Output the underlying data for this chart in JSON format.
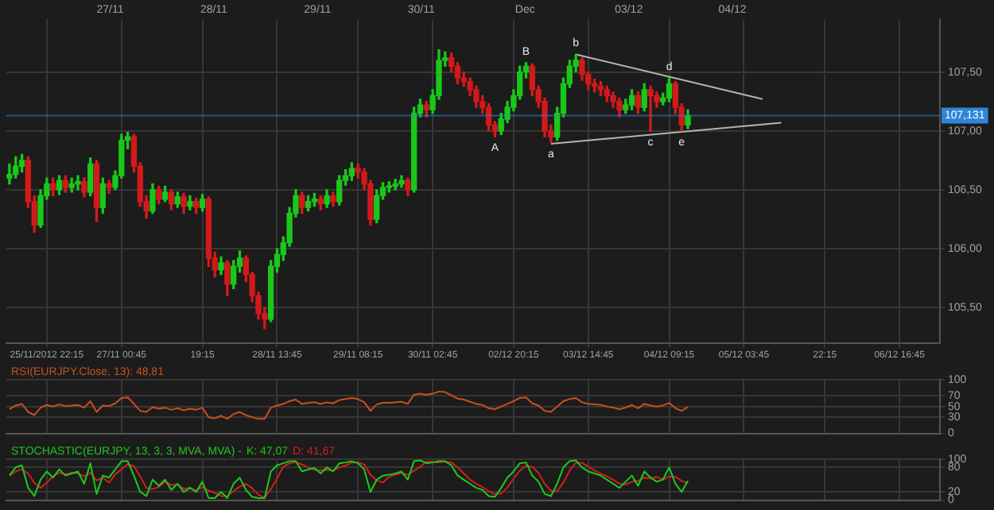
{
  "chart_data": [
    {
      "type": "candlestick",
      "ylim": [
        105.2,
        107.95
      ],
      "grid": true,
      "categories": [
        null,
        null,
        null,
        null,
        null,
        null,
        "25/11/2012 22:15",
        null,
        null,
        null,
        null,
        null,
        null,
        null,
        null,
        null,
        null,
        null,
        "27/11 00:45",
        null,
        null,
        null,
        null,
        null,
        null,
        null,
        null,
        null,
        null,
        null,
        null,
        "19:15",
        null,
        null,
        null,
        null,
        null,
        null,
        null,
        null,
        null,
        null,
        null,
        "28/11 13:45",
        null,
        null,
        null,
        null,
        null,
        null,
        null,
        null,
        null,
        null,
        null,
        null,
        "29/11 08:15",
        null,
        null,
        null,
        null,
        null,
        null,
        null,
        null,
        null,
        null,
        null,
        "30/11 02:45",
        null,
        null,
        null,
        null,
        null,
        null,
        null,
        null,
        null,
        null,
        null,
        null,
        "02/12 20:15",
        null,
        null,
        null,
        null,
        null,
        null,
        null,
        null,
        null,
        null,
        null,
        "03/12 14:45",
        null,
        null,
        null,
        null,
        null,
        null,
        null,
        null,
        null,
        null,
        null,
        null,
        "04/12 09:15",
        null,
        null,
        null,
        null,
        null,
        null,
        null,
        null,
        null,
        null,
        null,
        "05/12 03:45",
        null,
        null,
        null,
        null,
        null,
        null,
        null,
        null,
        null,
        null,
        null,
        null,
        "22:15",
        null,
        null,
        null,
        null,
        null,
        null,
        null,
        null,
        null,
        null,
        null,
        "06/12 16:45",
        null,
        null,
        null,
        null,
        null,
        null
      ],
      "yticks": [
        {
          "value": 105.5,
          "label": "105,50"
        },
        {
          "value": 106,
          "label": "106,00"
        },
        {
          "value": 106.5,
          "label": "106,50"
        },
        {
          "value": 107,
          "label": "107,00"
        },
        {
          "value": 107.5,
          "label": "107,50"
        }
      ],
      "ohlc": [
        [
          106.6,
          106.72,
          106.55,
          106.63
        ],
        [
          106.63,
          106.78,
          106.6,
          106.7
        ],
        [
          106.7,
          106.8,
          106.65,
          106.75
        ],
        [
          106.75,
          106.78,
          106.35,
          106.4
        ],
        [
          106.4,
          106.45,
          106.14,
          106.2
        ],
        [
          106.2,
          106.5,
          106.18,
          106.45
        ],
        [
          106.45,
          106.6,
          106.42,
          106.55
        ],
        [
          106.55,
          106.6,
          106.45,
          106.5
        ],
        [
          106.5,
          106.62,
          106.46,
          106.58
        ],
        [
          106.58,
          106.62,
          106.48,
          106.52
        ],
        [
          106.52,
          106.6,
          106.48,
          106.55
        ],
        [
          106.55,
          106.62,
          106.5,
          106.57
        ],
        [
          106.57,
          106.6,
          106.44,
          106.48
        ],
        [
          106.48,
          106.77,
          106.45,
          106.72
        ],
        [
          106.72,
          106.75,
          106.23,
          106.35
        ],
        [
          106.35,
          106.6,
          106.3,
          106.55
        ],
        [
          106.55,
          106.58,
          106.47,
          106.52
        ],
        [
          106.52,
          106.66,
          106.5,
          106.62
        ],
        [
          106.62,
          106.97,
          106.6,
          106.92
        ],
        [
          106.92,
          106.99,
          106.85,
          106.95
        ],
        [
          106.95,
          106.97,
          106.65,
          106.7
        ],
        [
          106.7,
          106.73,
          106.36,
          106.4
        ],
        [
          106.4,
          106.45,
          106.26,
          106.32
        ],
        [
          106.32,
          106.55,
          106.3,
          106.5
        ],
        [
          106.5,
          106.53,
          106.38,
          106.42
        ],
        [
          106.42,
          106.53,
          106.4,
          106.48
        ],
        [
          106.48,
          106.5,
          106.33,
          106.38
        ],
        [
          106.38,
          106.48,
          106.35,
          106.44
        ],
        [
          106.44,
          106.47,
          106.3,
          106.36
        ],
        [
          106.36,
          106.45,
          106.33,
          106.4
        ],
        [
          106.4,
          106.43,
          106.3,
          106.35
        ],
        [
          106.35,
          106.46,
          106.32,
          106.42
        ],
        [
          106.42,
          106.44,
          105.85,
          105.92
        ],
        [
          105.92,
          105.97,
          105.76,
          105.82
        ],
        [
          105.82,
          105.93,
          105.78,
          105.88
        ],
        [
          105.88,
          105.9,
          105.6,
          105.7
        ],
        [
          105.7,
          105.9,
          105.66,
          105.85
        ],
        [
          105.85,
          105.98,
          105.8,
          105.92
        ],
        [
          105.92,
          105.94,
          105.72,
          105.78
        ],
        [
          105.78,
          105.8,
          105.55,
          105.6
        ],
        [
          105.6,
          105.63,
          105.4,
          105.45
        ],
        [
          105.45,
          105.5,
          105.32,
          105.4
        ],
        [
          105.4,
          105.9,
          105.38,
          105.85
        ],
        [
          105.85,
          106.0,
          105.8,
          105.95
        ],
        [
          105.95,
          106.1,
          105.9,
          106.05
        ],
        [
          106.05,
          106.35,
          106.02,
          106.3
        ],
        [
          106.3,
          106.5,
          106.27,
          106.45
        ],
        [
          106.45,
          106.48,
          106.3,
          106.35
        ],
        [
          106.35,
          106.45,
          106.32,
          106.4
        ],
        [
          106.4,
          106.47,
          106.36,
          106.42
        ],
        [
          106.42,
          106.45,
          106.33,
          106.38
        ],
        [
          106.38,
          106.5,
          106.35,
          106.45
        ],
        [
          106.45,
          106.48,
          106.36,
          106.4
        ],
        [
          106.4,
          106.62,
          106.37,
          106.58
        ],
        [
          106.58,
          106.67,
          106.54,
          106.62
        ],
        [
          106.62,
          106.73,
          106.58,
          106.68
        ],
        [
          106.68,
          106.72,
          106.6,
          106.65
        ],
        [
          106.65,
          106.68,
          106.5,
          106.55
        ],
        [
          106.55,
          106.58,
          106.2,
          106.25
        ],
        [
          106.25,
          106.5,
          106.22,
          106.45
        ],
        [
          106.45,
          106.56,
          106.42,
          106.52
        ],
        [
          106.52,
          106.57,
          106.48,
          106.53
        ],
        [
          106.53,
          106.59,
          106.5,
          106.55
        ],
        [
          106.55,
          106.62,
          106.52,
          106.58
        ],
        [
          106.58,
          106.6,
          106.45,
          106.5
        ],
        [
          106.5,
          107.2,
          106.48,
          107.15
        ],
        [
          107.15,
          107.27,
          107.12,
          107.22
        ],
        [
          107.22,
          107.25,
          107.12,
          107.18
        ],
        [
          107.18,
          107.35,
          107.15,
          107.3
        ],
        [
          107.3,
          107.69,
          107.27,
          107.6
        ],
        [
          107.6,
          107.67,
          107.55,
          107.62
        ],
        [
          107.62,
          107.66,
          107.5,
          107.55
        ],
        [
          107.55,
          107.58,
          107.4,
          107.45
        ],
        [
          107.45,
          107.5,
          107.38,
          107.42
        ],
        [
          107.42,
          107.45,
          107.3,
          107.35
        ],
        [
          107.35,
          107.38,
          107.2,
          107.25
        ],
        [
          107.25,
          107.3,
          107.15,
          107.2
        ],
        [
          107.2,
          107.23,
          107.0,
          107.05
        ],
        [
          107.05,
          107.08,
          106.95,
          107.0
        ],
        [
          107.0,
          107.15,
          106.97,
          107.1
        ],
        [
          107.1,
          107.25,
          107.07,
          107.2
        ],
        [
          107.2,
          107.35,
          107.17,
          107.3
        ],
        [
          107.3,
          107.55,
          107.27,
          107.5
        ],
        [
          107.5,
          107.58,
          107.45,
          107.55
        ],
        [
          107.55,
          107.57,
          107.3,
          107.35
        ],
        [
          107.35,
          107.38,
          107.2,
          107.25
        ],
        [
          107.25,
          107.28,
          106.95,
          107.0
        ],
        [
          107.0,
          107.05,
          106.9,
          106.95
        ],
        [
          106.95,
          107.2,
          106.92,
          107.15
        ],
        [
          107.15,
          107.45,
          107.12,
          107.4
        ],
        [
          107.4,
          107.6,
          107.37,
          107.55
        ],
        [
          107.55,
          107.65,
          107.5,
          107.6
        ],
        [
          107.6,
          107.62,
          107.43,
          107.48
        ],
        [
          107.48,
          107.5,
          107.35,
          107.4
        ],
        [
          107.4,
          107.44,
          107.33,
          107.38
        ],
        [
          107.38,
          107.42,
          107.3,
          107.35
        ],
        [
          107.35,
          107.38,
          107.25,
          107.3
        ],
        [
          107.3,
          107.33,
          107.2,
          107.25
        ],
        [
          107.25,
          107.28,
          107.12,
          107.18
        ],
        [
          107.18,
          107.27,
          107.15,
          107.22
        ],
        [
          107.22,
          107.35,
          107.18,
          107.3
        ],
        [
          107.3,
          107.33,
          107.15,
          107.2
        ],
        [
          107.2,
          107.4,
          107.17,
          107.35
        ],
        [
          107.35,
          107.38,
          107.0,
          107.3
        ],
        [
          107.3,
          107.33,
          107.2,
          107.25
        ],
        [
          107.25,
          107.32,
          107.22,
          107.28
        ],
        [
          107.28,
          107.45,
          107.25,
          107.4
        ],
        [
          107.4,
          107.42,
          107.15,
          107.2
        ],
        [
          107.2,
          107.23,
          107.0,
          107.05
        ],
        [
          107.05,
          107.18,
          107.02,
          107.13
        ],
        null,
        null,
        null,
        null,
        null,
        null,
        null,
        null,
        null,
        null,
        null,
        null,
        null,
        null,
        null,
        null,
        null,
        null,
        null,
        null,
        null,
        null,
        null,
        null,
        null,
        null,
        null,
        null,
        null,
        null,
        null,
        null,
        null,
        null,
        null,
        null,
        null,
        null,
        null,
        null
      ],
      "value_labels": [
        null,
        null,
        null,
        null,
        null,
        null,
        null,
        null,
        null,
        null,
        null,
        null,
        null,
        null,
        null,
        null,
        null,
        null,
        null,
        null,
        null,
        null,
        null,
        null,
        null,
        null,
        null,
        null,
        null,
        null,
        null,
        null,
        null,
        null,
        null,
        null,
        null,
        null,
        null,
        null,
        null,
        null,
        null,
        null,
        null,
        null,
        null,
        null,
        null,
        null,
        null,
        null,
        null,
        null,
        null,
        null,
        null,
        null,
        null,
        null,
        null,
        null,
        null,
        null,
        null,
        null,
        null,
        null,
        null,
        null,
        null,
        null,
        null,
        null,
        null,
        null,
        null,
        null,
        "A",
        null,
        null,
        null,
        null,
        "B",
        null,
        null,
        null,
        "a",
        null,
        null,
        null,
        "b",
        null,
        null,
        null,
        null,
        null,
        null,
        null,
        null,
        null,
        null,
        null,
        "c",
        null,
        null,
        "d",
        null,
        "e",
        null,
        null,
        null,
        null,
        null,
        null,
        null,
        null,
        null,
        null,
        null,
        null,
        null,
        null,
        null,
        null,
        null,
        null,
        null,
        null,
        null,
        null,
        null,
        null,
        null,
        null,
        null,
        null,
        null,
        null,
        null,
        null,
        null,
        null,
        null,
        null,
        null,
        null,
        null,
        null,
        null
      ],
      "series": [
        {
          "type": "line",
          "color": "#b4b4b4",
          "values": [
            null,
            null,
            null,
            null,
            null,
            null,
            null,
            null,
            null,
            null,
            null,
            null,
            null,
            null,
            null,
            null,
            null,
            null,
            null,
            null,
            null,
            null,
            null,
            null,
            null,
            null,
            null,
            null,
            null,
            null,
            null,
            null,
            null,
            null,
            null,
            null,
            null,
            null,
            null,
            null,
            null,
            null,
            null,
            null,
            null,
            null,
            null,
            null,
            null,
            null,
            null,
            null,
            null,
            null,
            null,
            null,
            null,
            null,
            null,
            null,
            null,
            null,
            null,
            null,
            null,
            null,
            null,
            null,
            null,
            null,
            null,
            null,
            null,
            null,
            null,
            null,
            null,
            null,
            null,
            null,
            null,
            null,
            null,
            null,
            null,
            null,
            null,
            null,
            null,
            null,
            null,
            107.65,
            null,
            null,
            null,
            null,
            null,
            null,
            null,
            null,
            null,
            null,
            null,
            null,
            null,
            null,
            null,
            null,
            null,
            null,
            null,
            null,
            null,
            null,
            null,
            null,
            null,
            null,
            null,
            null,
            null,
            107.27,
            null,
            null,
            null,
            null,
            null,
            null,
            null,
            null,
            null,
            null,
            null,
            null,
            null,
            null,
            null,
            null,
            null,
            null,
            null,
            null,
            null,
            null,
            null,
            null,
            null,
            null,
            null,
            null
          ]
        },
        {
          "type": "line",
          "color": "#b4b4b4",
          "values": [
            null,
            null,
            null,
            null,
            null,
            null,
            null,
            null,
            null,
            null,
            null,
            null,
            null,
            null,
            null,
            null,
            null,
            null,
            null,
            null,
            null,
            null,
            null,
            null,
            null,
            null,
            null,
            null,
            null,
            null,
            null,
            null,
            null,
            null,
            null,
            null,
            null,
            null,
            null,
            null,
            null,
            null,
            null,
            null,
            null,
            null,
            null,
            null,
            null,
            null,
            null,
            null,
            null,
            null,
            null,
            null,
            null,
            null,
            null,
            null,
            null,
            null,
            null,
            null,
            null,
            null,
            null,
            null,
            null,
            null,
            null,
            null,
            null,
            null,
            null,
            null,
            null,
            null,
            null,
            null,
            null,
            null,
            null,
            null,
            null,
            null,
            null,
            106.89,
            null,
            null,
            null,
            null,
            null,
            null,
            null,
            null,
            null,
            null,
            null,
            null,
            null,
            null,
            null,
            null,
            null,
            null,
            null,
            null,
            null,
            null,
            null,
            null,
            null,
            null,
            null,
            null,
            null,
            null,
            null,
            null,
            null,
            null,
            null,
            null,
            107.07,
            null,
            null,
            null,
            null,
            null,
            null,
            null,
            null,
            null,
            null,
            null,
            null,
            null,
            null,
            null,
            null,
            null,
            null,
            null,
            null,
            null,
            null,
            null,
            null,
            null
          ]
        }
      ],
      "marker": "none",
      "line_style": "solid",
      "annotations": [
        "27/11",
        "28/11",
        "29/11",
        "30/11",
        "Dec",
        "03/12",
        "04/12"
      ],
      "ref_lines": [
        {
          "axis": "y",
          "value": 107.131,
          "label": "107,131",
          "color": "#2d86d8"
        }
      ]
    },
    {
      "type": "line",
      "title": "RSI(EURJPY.Close, 13): 48,81",
      "ylim": [
        0,
        100
      ],
      "yticks": [
        0,
        30,
        50,
        70,
        100
      ],
      "grid": true,
      "tick_labels": "y",
      "marker": "none",
      "line_style": "solid",
      "categories": [
        null,
        null,
        null,
        null,
        null,
        null,
        null,
        null,
        null,
        null,
        null,
        null,
        null,
        null,
        null,
        null,
        null,
        null,
        null,
        null,
        null,
        null,
        null,
        null,
        null,
        null,
        null,
        null,
        null,
        null,
        null,
        null,
        null,
        null,
        null,
        null,
        null,
        null,
        null,
        null,
        null,
        null,
        null,
        null,
        null,
        null,
        null,
        null,
        null,
        null,
        null,
        null,
        null,
        null,
        null,
        null,
        null,
        null,
        null,
        null,
        null,
        null,
        null,
        null,
        null,
        null,
        null,
        null,
        null,
        null,
        null,
        null,
        null,
        null,
        null,
        null,
        null,
        null,
        null,
        null,
        null,
        null,
        null,
        null,
        null,
        null,
        null,
        null,
        null,
        null,
        null,
        null,
        null,
        null,
        null,
        null,
        null,
        null,
        null,
        null,
        null,
        null,
        null,
        null,
        null,
        null,
        null,
        null,
        null,
        null,
        null,
        null,
        null,
        null,
        null,
        null,
        null,
        null,
        null,
        null,
        null,
        null,
        null,
        null,
        null,
        null,
        null,
        null,
        null,
        null,
        null,
        null,
        null,
        null,
        null,
        null,
        null,
        null,
        null,
        null,
        null,
        null,
        null,
        null,
        null,
        null,
        null,
        null,
        null,
        null
      ],
      "series": [
        {
          "color": "#c8501e",
          "values": [
            45,
            52,
            55,
            40,
            34,
            48,
            53,
            50,
            54,
            51,
            52,
            53,
            48,
            60,
            40,
            52,
            51,
            56,
            66,
            67,
            55,
            42,
            40,
            49,
            46,
            48,
            44,
            47,
            43,
            46,
            44,
            48,
            30,
            28,
            33,
            27,
            36,
            40,
            34,
            30,
            27,
            27,
            48,
            52,
            55,
            60,
            63,
            55,
            57,
            58,
            55,
            58,
            56,
            62,
            64,
            66,
            64,
            58,
            42,
            54,
            57,
            57,
            58,
            59,
            55,
            72,
            74,
            72,
            74,
            78,
            77,
            71,
            65,
            63,
            59,
            55,
            53,
            47,
            45,
            50,
            55,
            60,
            66,
            67,
            56,
            52,
            42,
            40,
            50,
            60,
            64,
            66,
            58,
            55,
            54,
            53,
            50,
            48,
            45,
            48,
            53,
            47,
            55,
            52,
            50,
            52,
            57,
            47,
            42,
            49,
            null,
            null,
            null,
            null,
            null,
            null,
            null,
            null,
            null,
            null,
            null,
            null,
            null,
            null,
            null,
            null,
            null,
            null,
            null,
            null,
            null,
            null,
            null,
            null,
            null,
            null,
            null,
            null,
            null,
            null,
            null,
            null,
            null,
            null,
            null,
            null,
            null,
            null,
            null,
            null
          ]
        }
      ]
    },
    {
      "type": "line",
      "title": "STOCHASTIC(EURJPY, 13, 3, 3, MVA, MVA) -",
      "ylim": [
        0,
        100
      ],
      "yticks": [
        0,
        20,
        80,
        100
      ],
      "grid": true,
      "tick_labels": "y",
      "marker": "none",
      "line_style": "solid",
      "legend": "top left",
      "categories": [
        null,
        null,
        null,
        null,
        null,
        null,
        null,
        null,
        null,
        null,
        null,
        null,
        null,
        null,
        null,
        null,
        null,
        null,
        null,
        null,
        null,
        null,
        null,
        null,
        null,
        null,
        null,
        null,
        null,
        null,
        null,
        null,
        null,
        null,
        null,
        null,
        null,
        null,
        null,
        null,
        null,
        null,
        null,
        null,
        null,
        null,
        null,
        null,
        null,
        null,
        null,
        null,
        null,
        null,
        null,
        null,
        null,
        null,
        null,
        null,
        null,
        null,
        null,
        null,
        null,
        null,
        null,
        null,
        null,
        null,
        null,
        null,
        null,
        null,
        null,
        null,
        null,
        null,
        null,
        null,
        null,
        null,
        null,
        null,
        null,
        null,
        null,
        null,
        null,
        null,
        null,
        null,
        null,
        null,
        null,
        null,
        null,
        null,
        null,
        null,
        null,
        null,
        null,
        null,
        null,
        null,
        null,
        null,
        null,
        null,
        null,
        null,
        null,
        null,
        null,
        null,
        null,
        null,
        null,
        null,
        null,
        null,
        null,
        null,
        null,
        null,
        null,
        null,
        null,
        null,
        null,
        null,
        null,
        null,
        null,
        null,
        null,
        null,
        null,
        null,
        null,
        null,
        null,
        null,
        null,
        null,
        null,
        null,
        null,
        null
      ],
      "series": [
        {
          "name": "K: 47,07",
          "color": "#1ec81e",
          "values": [
            60,
            80,
            85,
            30,
            10,
            50,
            70,
            55,
            75,
            60,
            65,
            70,
            40,
            90,
            15,
            60,
            55,
            75,
            95,
            95,
            60,
            20,
            10,
            50,
            35,
            50,
            25,
            40,
            20,
            30,
            20,
            45,
            5,
            5,
            20,
            5,
            40,
            55,
            25,
            8,
            5,
            5,
            70,
            85,
            90,
            95,
            95,
            70,
            75,
            78,
            65,
            80,
            70,
            90,
            92,
            95,
            90,
            75,
            20,
            50,
            60,
            62,
            65,
            70,
            50,
            95,
            97,
            90,
            92,
            95,
            95,
            85,
            60,
            50,
            40,
            30,
            25,
            10,
            8,
            30,
            55,
            70,
            90,
            92,
            60,
            45,
            15,
            10,
            40,
            80,
            95,
            97,
            80,
            70,
            65,
            60,
            50,
            40,
            30,
            45,
            60,
            35,
            70,
            55,
            45,
            50,
            80,
            40,
            20,
            47,
            null,
            null,
            null,
            null,
            null,
            null,
            null,
            null,
            null,
            null,
            null,
            null,
            null,
            null,
            null,
            null,
            null,
            null,
            null,
            null,
            null,
            null,
            null,
            null,
            null,
            null,
            null,
            null,
            null,
            null,
            null,
            null,
            null,
            null,
            null,
            null,
            null,
            null,
            null,
            null
          ]
        },
        {
          "name": "D: 41,67",
          "color": "#d21e1e",
          "values": [
            60,
            70,
            75,
            65,
            42,
            30,
            43,
            58,
            67,
            63,
            67,
            65,
            58,
            67,
            48,
            55,
            43,
            63,
            75,
            88,
            83,
            58,
            30,
            27,
            32,
            45,
            37,
            38,
            28,
            30,
            23,
            32,
            23,
            18,
            10,
            10,
            22,
            33,
            40,
            29,
            13,
            6,
            27,
            53,
            82,
            90,
            93,
            87,
            80,
            74,
            73,
            74,
            72,
            80,
            84,
            92,
            92,
            87,
            62,
            48,
            43,
            57,
            62,
            66,
            62,
            72,
            81,
            94,
            93,
            92,
            94,
            92,
            80,
            65,
            50,
            40,
            32,
            22,
            14,
            16,
            31,
            52,
            72,
            84,
            81,
            66,
            40,
            23,
            22,
            43,
            72,
            91,
            91,
            82,
            72,
            65,
            58,
            50,
            40,
            38,
            45,
            47,
            55,
            53,
            57,
            50,
            58,
            57,
            47,
            42,
            null,
            null,
            null,
            null,
            null,
            null,
            null,
            null,
            null,
            null,
            null,
            null,
            null,
            null,
            null,
            null,
            null,
            null,
            null,
            null,
            null,
            null,
            null,
            null,
            null,
            null,
            null,
            null,
            null,
            null,
            null,
            null,
            null,
            null,
            null,
            null,
            null,
            null,
            null,
            null
          ]
        }
      ]
    }
  ]
}
